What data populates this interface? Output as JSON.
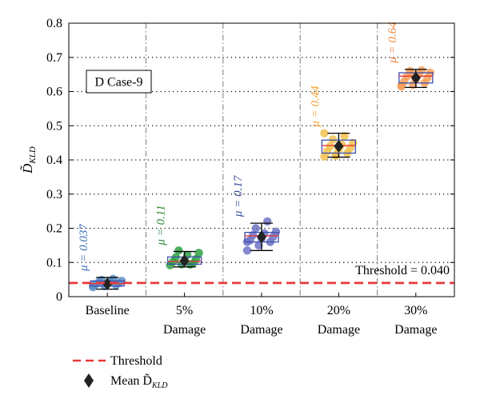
{
  "chart_data": {
    "type": "box",
    "ylabel": "D̃",
    "ylabel_sub": "KLD",
    "ylim": [
      0,
      0.8
    ],
    "yticks": [
      "0",
      "0.1",
      "0.2",
      "0.3",
      "0.4",
      "0.5",
      "0.6",
      "0.7",
      "0.8"
    ],
    "grid": "dotted",
    "case_label": "D Case-9",
    "threshold": {
      "value": 0.04,
      "label": "Threshold = 0.040",
      "color": "#e8383b"
    },
    "categories": [
      {
        "line1": "Baseline",
        "line2": "",
        "mu_label": "μ = 0.037",
        "mean": 0.037,
        "q1": 0.031,
        "median": 0.038,
        "q3": 0.046,
        "whisker_low": 0.022,
        "whisker_high": 0.056,
        "points": [
          0.028,
          0.031,
          0.034,
          0.036,
          0.038,
          0.04,
          0.042,
          0.044,
          0.046,
          0.049,
          0.052,
          0.033
        ],
        "point_color": "#5b8fc7",
        "label_color": "#3d6fb4"
      },
      {
        "line1": "5%",
        "line2": "Damage",
        "mu_label": "μ = 0.11",
        "mean": 0.105,
        "q1": 0.095,
        "median": 0.103,
        "q3": 0.116,
        "whisker_low": 0.087,
        "whisker_high": 0.132,
        "points": [
          0.092,
          0.095,
          0.098,
          0.102,
          0.105,
          0.11,
          0.115,
          0.122,
          0.128,
          0.135,
          0.094
        ],
        "point_color": "#2ea043",
        "label_color": "#2e8b3a"
      },
      {
        "line1": "10%",
        "line2": "Damage",
        "mu_label": "μ = 0.17",
        "mean": 0.175,
        "q1": 0.16,
        "median": 0.178,
        "q3": 0.188,
        "whisker_low": 0.135,
        "whisker_high": 0.215,
        "points": [
          0.135,
          0.15,
          0.16,
          0.165,
          0.17,
          0.175,
          0.18,
          0.185,
          0.19,
          0.2,
          0.22,
          0.16
        ],
        "point_color": "#6f73c4",
        "label_color": "#3d4fa0"
      },
      {
        "line1": "20%",
        "line2": "Damage",
        "mu_label": "μ = 0.44",
        "mean": 0.44,
        "q1": 0.42,
        "median": 0.442,
        "q3": 0.458,
        "whisker_low": 0.408,
        "whisker_high": 0.478,
        "points": [
          0.41,
          0.415,
          0.42,
          0.425,
          0.43,
          0.435,
          0.44,
          0.445,
          0.45,
          0.46,
          0.47,
          0.478,
          0.412
        ],
        "point_color": "#f2c14e",
        "label_color": "#f0a030"
      },
      {
        "line1": "30%",
        "line2": "Damage",
        "mu_label": "μ = 0.64",
        "mean": 0.64,
        "q1": 0.625,
        "median": 0.645,
        "q3": 0.655,
        "whisker_low": 0.612,
        "whisker_high": 0.665,
        "points": [
          0.615,
          0.62,
          0.625,
          0.63,
          0.635,
          0.64,
          0.645,
          0.65,
          0.655,
          0.66,
          0.662,
          0.618,
          0.652
        ],
        "point_color": "#f5a05a",
        "label_color": "#f0883e"
      }
    ],
    "box_color": "#3d4fb0",
    "median_color": "#e8383b",
    "whisker_color": "#000000",
    "legend": {
      "threshold_label": "Threshold",
      "mean_label": "Mean D̃",
      "mean_sub": "KLD"
    }
  }
}
